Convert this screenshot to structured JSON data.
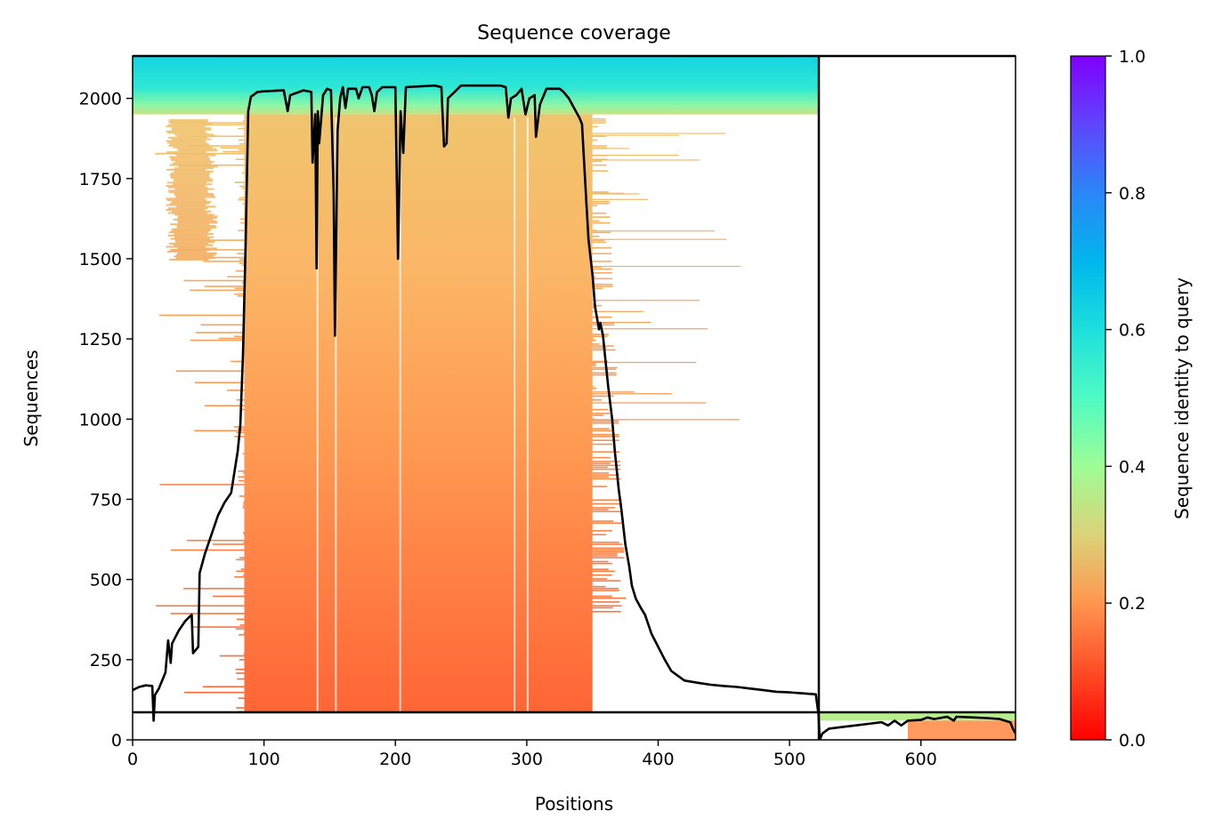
{
  "chart_data": {
    "type": "heatmap",
    "title": "Sequence coverage",
    "xlabel": "Positions",
    "ylabel": "Sequences",
    "xlim": [
      0,
      672
    ],
    "ylim": [
      0,
      2132
    ],
    "x_ticks": [
      0,
      100,
      200,
      300,
      400,
      500,
      600
    ],
    "y_ticks": [
      0,
      250,
      500,
      750,
      1000,
      1250,
      1500,
      1750,
      2000
    ],
    "colorbar": {
      "label": "Sequence identity to query",
      "range": [
        0,
        1
      ],
      "ticks": [
        "0.0",
        "0.2",
        "0.4",
        "0.6",
        "0.8",
        "1.0"
      ],
      "colormap": "rainbow_r",
      "stops": [
        {
          "v": 0.0,
          "color": "#ff0000"
        },
        {
          "v": 0.1,
          "color": "#ff4d27"
        },
        {
          "v": 0.2,
          "color": "#ff964f"
        },
        {
          "v": 0.3,
          "color": "#dbd379"
        },
        {
          "v": 0.4,
          "color": "#9efd96"
        },
        {
          "v": 0.5,
          "color": "#4efbc3"
        },
        {
          "v": 0.6,
          "color": "#1ddfdc"
        },
        {
          "v": 0.7,
          "color": "#00b6ed"
        },
        {
          "v": 0.8,
          "color": "#2b86f7"
        },
        {
          "v": 0.9,
          "color": "#5f45fd"
        },
        {
          "v": 1.0,
          "color": "#8000ff"
        }
      ]
    },
    "separators": {
      "query_row": 83,
      "chain_break_position": 523
    },
    "coverage_line": {
      "color": "#000000",
      "points": [
        [
          0,
          155
        ],
        [
          5,
          165
        ],
        [
          10,
          170
        ],
        [
          15,
          168
        ],
        [
          16,
          60
        ],
        [
          17,
          140
        ],
        [
          20,
          160
        ],
        [
          25,
          210
        ],
        [
          27,
          310
        ],
        [
          29,
          240
        ],
        [
          30,
          300
        ],
        [
          35,
          340
        ],
        [
          40,
          370
        ],
        [
          45,
          390
        ],
        [
          46,
          270
        ],
        [
          50,
          290
        ],
        [
          51,
          520
        ],
        [
          55,
          580
        ],
        [
          60,
          640
        ],
        [
          65,
          700
        ],
        [
          70,
          740
        ],
        [
          75,
          770
        ],
        [
          80,
          900
        ],
        [
          82,
          980
        ],
        [
          84,
          1200
        ],
        [
          86,
          1550
        ],
        [
          88,
          1960
        ],
        [
          90,
          2005
        ],
        [
          95,
          2020
        ],
        [
          100,
          2022
        ],
        [
          115,
          2025
        ],
        [
          118,
          1960
        ],
        [
          120,
          2010
        ],
        [
          130,
          2025
        ],
        [
          136,
          2020
        ],
        [
          137,
          1800
        ],
        [
          139,
          1950
        ],
        [
          140,
          1470
        ],
        [
          141,
          1960
        ],
        [
          142,
          1860
        ],
        [
          145,
          2010
        ],
        [
          148,
          2030
        ],
        [
          151,
          2025
        ],
        [
          153,
          1700
        ],
        [
          154,
          1260
        ],
        [
          156,
          1900
        ],
        [
          158,
          2000
        ],
        [
          160,
          2035
        ],
        [
          162,
          1970
        ],
        [
          164,
          2030
        ],
        [
          170,
          2030
        ],
        [
          172,
          2000
        ],
        [
          175,
          2035
        ],
        [
          180,
          2035
        ],
        [
          182,
          2010
        ],
        [
          184,
          1960
        ],
        [
          186,
          2020
        ],
        [
          190,
          2035
        ],
        [
          200,
          2035
        ],
        [
          202,
          1500
        ],
        [
          204,
          1960
        ],
        [
          206,
          1830
        ],
        [
          208,
          2035
        ],
        [
          230,
          2040
        ],
        [
          235,
          2035
        ],
        [
          237,
          1850
        ],
        [
          239,
          1860
        ],
        [
          240,
          2000
        ],
        [
          245,
          2020
        ],
        [
          250,
          2040
        ],
        [
          260,
          2040
        ],
        [
          280,
          2040
        ],
        [
          284,
          2035
        ],
        [
          286,
          1940
        ],
        [
          288,
          2000
        ],
        [
          292,
          2010
        ],
        [
          296,
          2030
        ],
        [
          299,
          1950
        ],
        [
          302,
          2000
        ],
        [
          306,
          2010
        ],
        [
          307,
          1880
        ],
        [
          310,
          1980
        ],
        [
          315,
          2030
        ],
        [
          325,
          2030
        ],
        [
          328,
          2020
        ],
        [
          330,
          2010
        ],
        [
          332,
          2000
        ],
        [
          340,
          1940
        ],
        [
          342,
          1920
        ],
        [
          345,
          1700
        ],
        [
          347,
          1560
        ],
        [
          350,
          1450
        ],
        [
          352,
          1350
        ],
        [
          355,
          1280
        ],
        [
          356,
          1300
        ],
        [
          358,
          1260
        ],
        [
          360,
          1180
        ],
        [
          362,
          1100
        ],
        [
          365,
          1000
        ],
        [
          367,
          900
        ],
        [
          370,
          780
        ],
        [
          372,
          720
        ],
        [
          375,
          610
        ],
        [
          378,
          540
        ],
        [
          380,
          480
        ],
        [
          383,
          440
        ],
        [
          387,
          410
        ],
        [
          390,
          390
        ],
        [
          395,
          330
        ],
        [
          400,
          290
        ],
        [
          405,
          250
        ],
        [
          410,
          215
        ],
        [
          415,
          200
        ],
        [
          420,
          185
        ],
        [
          430,
          178
        ],
        [
          440,
          172
        ],
        [
          450,
          168
        ],
        [
          460,
          165
        ],
        [
          470,
          160
        ],
        [
          480,
          155
        ],
        [
          490,
          150
        ],
        [
          500,
          148
        ],
        [
          510,
          145
        ],
        [
          520,
          142
        ],
        [
          522,
          80
        ],
        [
          523,
          0
        ],
        [
          525,
          20
        ],
        [
          530,
          35
        ],
        [
          540,
          40
        ],
        [
          550,
          45
        ],
        [
          560,
          50
        ],
        [
          570,
          55
        ],
        [
          575,
          45
        ],
        [
          580,
          60
        ],
        [
          585,
          45
        ],
        [
          590,
          60
        ],
        [
          600,
          62
        ],
        [
          605,
          70
        ],
        [
          610,
          65
        ],
        [
          620,
          72
        ],
        [
          625,
          60
        ],
        [
          627,
          72
        ],
        [
          640,
          70
        ],
        [
          650,
          68
        ],
        [
          660,
          65
        ],
        [
          668,
          55
        ],
        [
          670,
          35
        ],
        [
          672,
          20
        ]
      ]
    },
    "coverage_matrix_blocks": [
      {
        "x_range": [
          0,
          523
        ],
        "y_range": [
          2000,
          2132
        ],
        "identity": 0.62,
        "note_free": true
      },
      {
        "x_range": [
          0,
          523
        ],
        "y_range": [
          1950,
          2000
        ],
        "identity": 0.5
      },
      {
        "x_range": [
          85,
          350
        ],
        "y_range": [
          83,
          1950
        ],
        "identity_top": 0.3,
        "identity_bottom": 0.13
      },
      {
        "x_range": [
          523,
          672
        ],
        "y_range": [
          60,
          83
        ],
        "identity": 0.4
      },
      {
        "x_range": [
          590,
          672
        ],
        "y_range": [
          0,
          60
        ],
        "identity": 0.18
      }
    ]
  }
}
